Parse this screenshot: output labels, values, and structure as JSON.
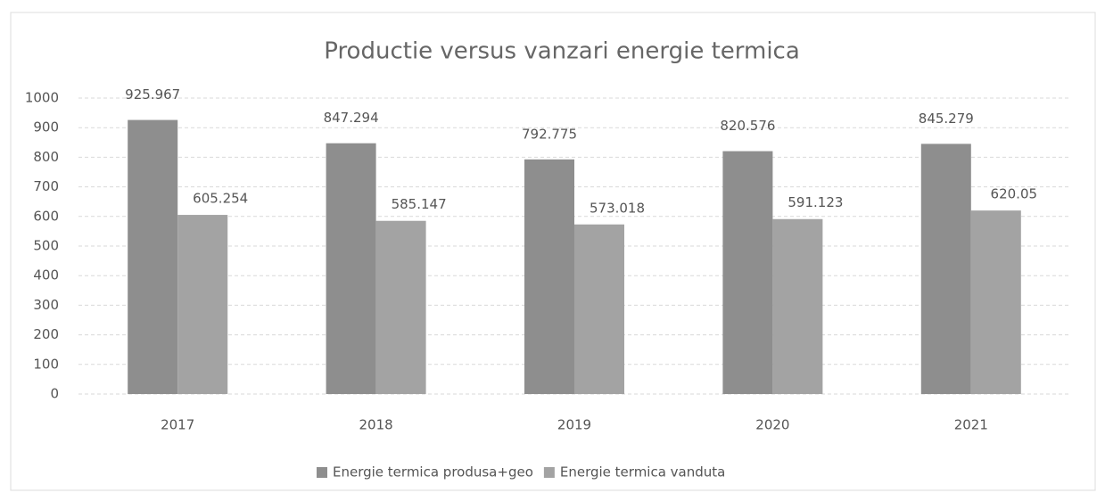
{
  "chart_data": {
    "type": "bar",
    "title": "Productie versus vanzari energie termica",
    "categories": [
      "2017",
      "2018",
      "2019",
      "2020",
      "2021"
    ],
    "series": [
      {
        "name": "Energie termica produsa+geo",
        "color": "#8e8e8e",
        "values": [
          925.967,
          847.294,
          792.775,
          820.576,
          845.279
        ]
      },
      {
        "name": "Energie termica vanduta",
        "color": "#a3a3a3",
        "values": [
          605.254,
          585.147,
          573.018,
          591.123,
          620.05
        ]
      }
    ],
    "ylim": [
      0,
      1000
    ],
    "yticks": [
      0,
      100,
      200,
      300,
      400,
      500,
      600,
      700,
      800,
      900,
      1000
    ],
    "grid": true,
    "legend": "bottom"
  }
}
